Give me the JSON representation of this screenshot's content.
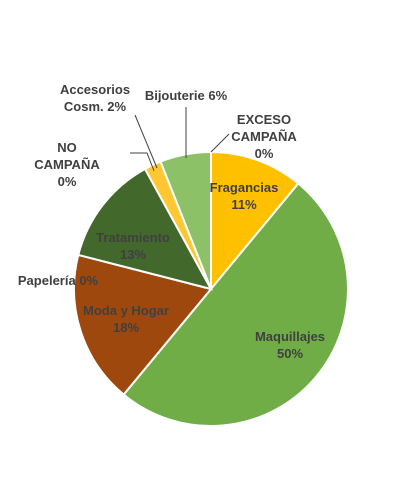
{
  "chart_data": {
    "type": "pie",
    "title": "",
    "slices": [
      {
        "name": "EXCESO CAMPAÑA",
        "label_lines": [
          "EXCESO",
          "CAMPAÑA",
          "0%"
        ],
        "value": 0,
        "percent_label": "0%",
        "color": "#c0504d"
      },
      {
        "name": "Fragancias",
        "label_lines": [
          "Fragancias",
          "11%"
        ],
        "value": 11,
        "percent_label": "11%",
        "color": "#ffc000"
      },
      {
        "name": "Maquillajes",
        "label_lines": [
          "Maquillajes",
          "50%"
        ],
        "value": 50,
        "percent_label": "50%",
        "color": "#70ad47"
      },
      {
        "name": "Moda y Hogar",
        "label_lines": [
          "Moda y Hogar",
          "18%"
        ],
        "value": 18,
        "percent_label": "18%",
        "color": "#9e480e"
      },
      {
        "name": "Papelería",
        "label_lines": [
          "Papelería 0%"
        ],
        "value": 0,
        "percent_label": "0%",
        "color": "#7f7f7f"
      },
      {
        "name": "Tratamiento",
        "label_lines": [
          "Tratamiento",
          "13%"
        ],
        "value": 13,
        "percent_label": "13%",
        "color": "#43682b"
      },
      {
        "name": "NO CAMPAÑA",
        "label_lines": [
          "NO",
          "CAMPAÑA",
          "0%"
        ],
        "value": 0,
        "percent_label": "0%",
        "color": "#264478"
      },
      {
        "name": "Accesorios Cosm.",
        "label_lines": [
          "Accesorios",
          "Cosm. 2%"
        ],
        "value": 2,
        "percent_label": "2%",
        "color": "#ffc833"
      },
      {
        "name": "Bijouterie",
        "label_lines": [
          "Bijouterie 6%"
        ],
        "value": 6,
        "percent_label": "6%",
        "color": "#8cc168"
      }
    ]
  }
}
